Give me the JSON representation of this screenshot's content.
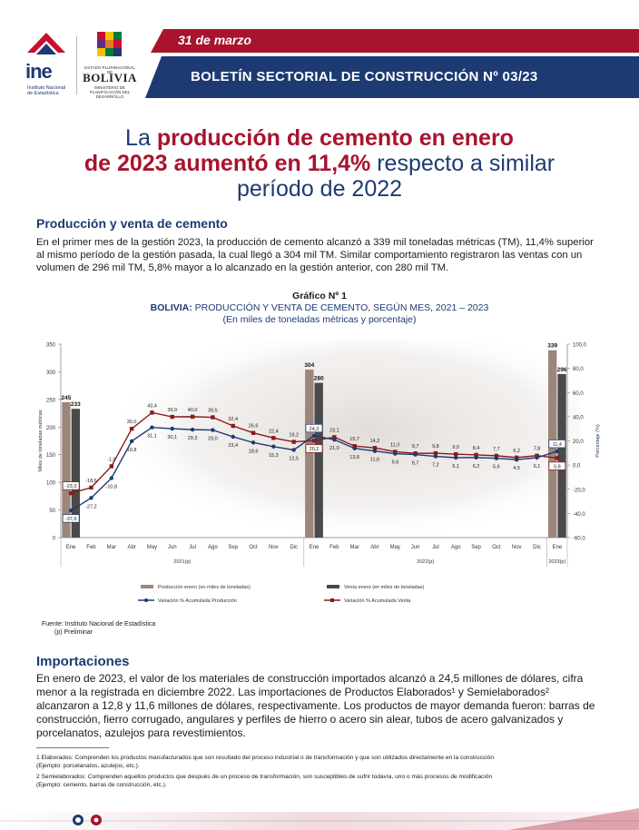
{
  "header": {
    "ine_logo_text": "ine",
    "ine_subtitle_1": "Instituto Nacional",
    "ine_subtitle_2": "de Estadística",
    "bolivia_small": "ESTADO PLURINACIONAL DE",
    "bolivia_name": "BOLIVIA",
    "bolivia_ministry": "MINISTERIO DE PLANIFICACIÓN DEL DESARROLLO",
    "date": "31 de marzo",
    "bulletin_title": "BOLETÍN SECTORIAL DE CONSTRUCCIÓN Nº 03/23",
    "colors": {
      "navy": "#1d3a72",
      "red": "#a8132e"
    }
  },
  "headline": {
    "line1_plain": "La ",
    "line1_red": "producción de cemento en enero",
    "line2_red": "de 2023 aumentó en 11,4%",
    "line2_plain": " respecto a similar",
    "line3_plain": "período de 2022"
  },
  "section1": {
    "title": "Producción y venta de cemento",
    "body": "En el primer mes de la gestión 2023, la producción de cemento alcanzó a 339 mil toneladas métricas (TM), 11,4% superior al mismo período de la gestión pasada, la cual llegó a 304 mil TM. Similar comportamiento registraron las ventas  con un volumen de 296 mil TM, 5,8% mayor a lo alcanzado en la gestión anterior, con 280 mil TM."
  },
  "chart_caption": {
    "number": "Gráfico Nº 1",
    "title_bold": "BOLIVIA:",
    "title_rest": " PRODUCCIÓN Y VENTA DE CEMENTO, SEGÚN MES, 2021 – 2023",
    "subtitle": "(En miles de toneladas métricas y porcentaje)"
  },
  "chart_data": {
    "type": "bar",
    "categories": [
      "Ene",
      "Feb",
      "Mar",
      "Abr",
      "May",
      "Jun",
      "Jul",
      "Ago",
      "Sep",
      "Oct",
      "Nov",
      "Dic",
      "Ene",
      "Feb",
      "Mar",
      "Abr",
      "May",
      "Jun",
      "Jul",
      "Ago",
      "Sep",
      "Oct",
      "Nov",
      "Dic",
      "Ene"
    ],
    "year_groups": [
      {
        "label": "2021(p)",
        "from": 0,
        "to": 11
      },
      {
        "label": "2022(p)",
        "from": 12,
        "to": 23
      },
      {
        "label": "2023(p)",
        "from": 24,
        "to": 24
      }
    ],
    "bar_indices": [
      0,
      12,
      24
    ],
    "series": [
      {
        "name": "Producción enero (en miles de toneladas)",
        "kind": "bar",
        "axis": "left",
        "color": "#9c8579",
        "values": [
          245,
          null,
          null,
          null,
          null,
          null,
          null,
          null,
          null,
          null,
          null,
          null,
          304,
          null,
          null,
          null,
          null,
          null,
          null,
          null,
          null,
          null,
          null,
          null,
          339
        ]
      },
      {
        "name": "Venta enero (en miles de toneladas)",
        "kind": "bar",
        "axis": "left",
        "color": "#4a4a4a",
        "values": [
          233,
          null,
          null,
          null,
          null,
          null,
          null,
          null,
          null,
          null,
          null,
          null,
          280,
          null,
          null,
          null,
          null,
          null,
          null,
          null,
          null,
          null,
          null,
          null,
          296
        ]
      },
      {
        "name": "Variación % Acumulada Producción",
        "kind": "line",
        "axis": "right",
        "color": "#1d3a72",
        "values": [
          -37.6,
          -27.2,
          -10.8,
          19.8,
          31.1,
          30.1,
          29.3,
          29.0,
          23.4,
          18.6,
          15.3,
          12.5,
          24.3,
          21.0,
          13.8,
          11.6,
          9.4,
          8.7,
          7.2,
          6.1,
          6.2,
          5.6,
          4.5,
          6.1,
          11.4
        ],
        "labels": [
          "-37,6",
          "-27,2",
          "-10,8",
          "19,8",
          "31,1",
          "30,1",
          "29,3",
          "29,0",
          "23,4",
          "18,6",
          "15,3",
          "12,5",
          "24,3",
          "21,0",
          "13,8",
          "11,6",
          "9,4",
          "8,7",
          "7,2",
          "6,1",
          "6,2",
          "5,6",
          "4,5",
          "6,1",
          "11,4"
        ]
      },
      {
        "name": "Variación % Acumulada Venta",
        "kind": "line",
        "axis": "right",
        "color": "#8b1a1a",
        "values": [
          -23.3,
          -18.6,
          -1.0,
          30.0,
          43.4,
          39.9,
          40.0,
          39.5,
          32.4,
          26.6,
          22.4,
          19.2,
          20.2,
          23.1,
          15.7,
          14.2,
          11.0,
          9.7,
          9.8,
          9.0,
          8.4,
          7.7,
          6.2,
          7.8,
          5.8
        ],
        "labels": [
          "-23,3",
          "-18,6",
          "-1,0",
          "30,0",
          "43,4",
          "39,9",
          "40,0",
          "39,5",
          "32,4",
          "26,6",
          "22,4",
          "19,2",
          "20,2",
          "23,1",
          "15,7",
          "14,2",
          "11,0",
          "9,7",
          "9,8",
          "9,0",
          "8,4",
          "7,7",
          "6,2",
          "7,8",
          "5,8"
        ]
      }
    ],
    "ylabel_left": "Miles de toneladas métricas",
    "ylabel_right": "Porcentaje (%)",
    "ylim_left": [
      0,
      350
    ],
    "ylim_right": [
      -60,
      100
    ],
    "yticks_left": [
      "0",
      "50",
      "100",
      "150",
      "200",
      "250",
      "300",
      "350"
    ],
    "yticks_right": [
      "-60,0",
      "-40,0",
      "-20,0",
      "0,0",
      "20,0",
      "40,0",
      "60,0",
      "80,0",
      "100,0"
    ],
    "legend_position": "bottom"
  },
  "source": {
    "line1": "Fuente: Instituto Nacional de Estadística",
    "line2": "(p) Preliminar"
  },
  "section2": {
    "title": "Importaciones",
    "body": "En enero de 2023, el valor de los materiales de construcción importados alcanzó a 24,5 millones de dólares, cifra menor a la registrada en diciembre 2022. Las importaciones de Productos Elaborados¹ y Semielaborados² alcanzaron a 12,8 y 11,6 millones de dólares, respectivamente. Los productos de mayor demanda fueron: barras de construcción, fierro corrugado, angulares y perfiles de hierro o acero sin alear, tubos de acero galvanizados y porcelanatos, azulejos para revestimientos."
  },
  "footnotes": {
    "fn1": "1  Elaborados: Comprenden los productos manufacturados que son resultado del proceso industrial o de transformación y que son utilizados directamente en la construcción",
    "fn1b": "   (Ejemplo: porcelanatos, azulejos, etc.).",
    "fn2": "2  Semielaborados: Comprenden aquellos productos que después de un proceso de transformación, son susceptibles de sufrir todavía, uno o más procesos de modificación",
    "fn2b": "   (Ejemplo: cemento, barras de construcción, etc.)."
  }
}
